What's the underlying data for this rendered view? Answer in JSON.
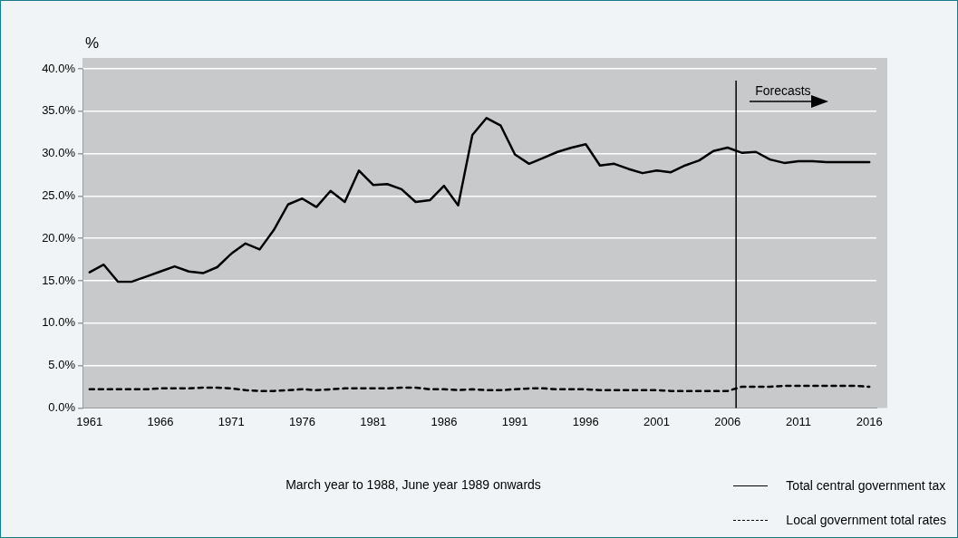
{
  "chart_data": {
    "type": "line",
    "ylabel": "%",
    "xlabel": "March year to 1988, June year 1989 onwards",
    "x": [
      1961,
      1962,
      1963,
      1964,
      1965,
      1966,
      1967,
      1968,
      1969,
      1970,
      1971,
      1972,
      1973,
      1974,
      1975,
      1976,
      1977,
      1978,
      1979,
      1980,
      1981,
      1982,
      1983,
      1984,
      1985,
      1986,
      1987,
      1988,
      1989,
      1990,
      1991,
      1992,
      1993,
      1994,
      1995,
      1996,
      1997,
      1998,
      1999,
      2000,
      2001,
      2002,
      2003,
      2004,
      2005,
      2006,
      2007,
      2008,
      2009,
      2010,
      2011,
      2012,
      2013,
      2014,
      2015,
      2016
    ],
    "series": [
      {
        "name": "Total central government tax",
        "color": "#000000",
        "line_style": "solid",
        "values": [
          16.0,
          16.9,
          14.9,
          14.9,
          15.5,
          16.1,
          16.7,
          16.1,
          15.9,
          16.6,
          18.2,
          19.4,
          18.7,
          21.0,
          24.0,
          24.7,
          23.7,
          25.6,
          24.3,
          28.0,
          26.3,
          26.4,
          25.8,
          24.3,
          24.5,
          26.2,
          23.9,
          32.2,
          34.2,
          33.3,
          29.9,
          28.8,
          29.5,
          30.2,
          30.7,
          31.1,
          28.6,
          28.8,
          28.2,
          27.7,
          28.0,
          27.8,
          28.6,
          29.2,
          30.3,
          30.7,
          30.1,
          30.2,
          29.3,
          28.9,
          29.1,
          29.1,
          29.0,
          29.0,
          29.0,
          29.0
        ]
      },
      {
        "name": "Local government total rates",
        "color": "#000000",
        "line_style": "dashed",
        "values": [
          2.2,
          2.2,
          2.2,
          2.2,
          2.2,
          2.3,
          2.3,
          2.3,
          2.4,
          2.4,
          2.3,
          2.1,
          2.0,
          2.0,
          2.1,
          2.2,
          2.1,
          2.2,
          2.3,
          2.3,
          2.3,
          2.3,
          2.4,
          2.4,
          2.2,
          2.2,
          2.1,
          2.2,
          2.1,
          2.1,
          2.2,
          2.3,
          2.3,
          2.2,
          2.2,
          2.2,
          2.1,
          2.1,
          2.1,
          2.1,
          2.1,
          2.0,
          2.0,
          2.0,
          2.0,
          2.0,
          2.5,
          2.5,
          2.5,
          2.6,
          2.6,
          2.6,
          2.6,
          2.6,
          2.6,
          2.5
        ]
      }
    ],
    "xlim": [
      1960.5,
      2016.5
    ],
    "xticks": [
      1961,
      1966,
      1971,
      1976,
      1981,
      1986,
      1991,
      1996,
      2001,
      2006,
      2011,
      2016
    ],
    "ylim": [
      0,
      40
    ],
    "yticks": [
      {
        "value": 0,
        "label": "0.0%"
      },
      {
        "value": 5,
        "label": "5.0%"
      },
      {
        "value": 10,
        "label": "10.0%"
      },
      {
        "value": 15,
        "label": "15.0%"
      },
      {
        "value": 20,
        "label": "20.0%"
      },
      {
        "value": 25,
        "label": "25.0%"
      },
      {
        "value": 30,
        "label": "30.0%"
      },
      {
        "value": 35,
        "label": "35.0%"
      },
      {
        "value": 40,
        "label": "40.0%"
      }
    ],
    "ref_lines": [
      {
        "axis": "x",
        "value": 2006.6,
        "label": "Forecasts",
        "color": "#000000"
      }
    ],
    "grid": "y",
    "legend": "bottom right",
    "marker": "none"
  }
}
